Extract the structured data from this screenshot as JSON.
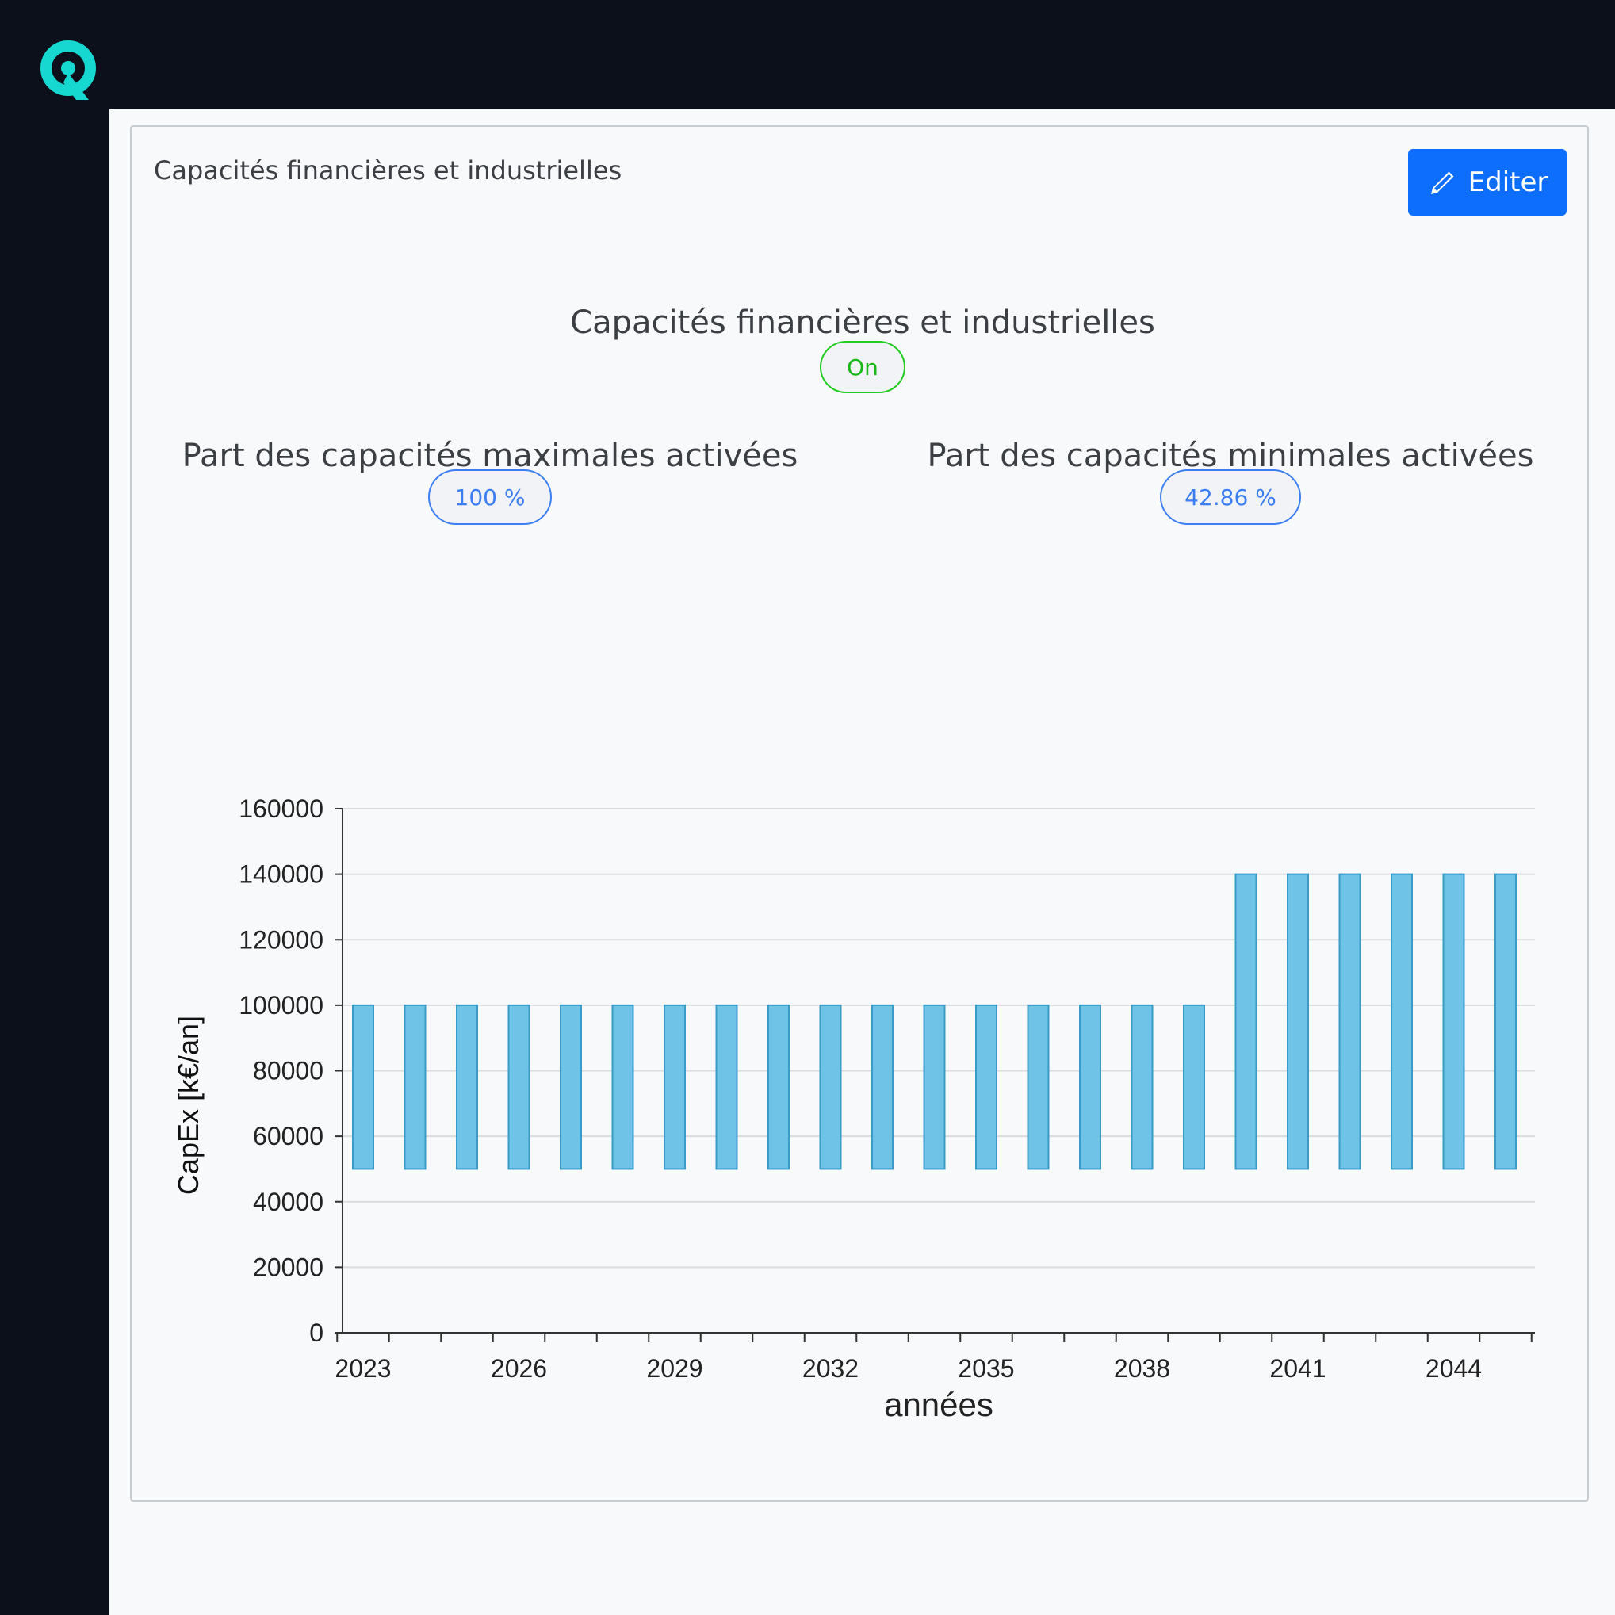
{
  "sidebar": {
    "logo_icon": "q-logo-icon"
  },
  "card": {
    "title": "Capacités financières et industrielles",
    "edit_label": "Editer",
    "edit_icon": "pencil-icon"
  },
  "settings": {
    "main_label": "Capacités financières et industrielles",
    "main_status": "On",
    "max_label": "Part des capacités maximales activées",
    "max_value": "100 %",
    "min_label": "Part des capacités minimales activées",
    "min_value": "42.86 %"
  },
  "colors": {
    "bar_fill": "#6ec3e6",
    "bar_stroke": "#3a9cc6",
    "primary": "#0d6efd",
    "on_green": "#22cc22",
    "logo": "#17d7d1"
  },
  "chart_data": {
    "type": "bar",
    "floating": true,
    "xlabel": "années",
    "ylabel": "CapEx [k€/an]",
    "ylim": [
      0,
      160000
    ],
    "yticks": [
      0,
      20000,
      40000,
      60000,
      80000,
      100000,
      120000,
      140000,
      160000
    ],
    "xtick_labels": [
      "2023",
      "2026",
      "2029",
      "2032",
      "2035",
      "2038",
      "2041",
      "2044"
    ],
    "grid": true,
    "categories": [
      "2023",
      "2024",
      "2025",
      "2026",
      "2027",
      "2028",
      "2029",
      "2030",
      "2031",
      "2032",
      "2033",
      "2034",
      "2035",
      "2036",
      "2037",
      "2038",
      "2039",
      "2040",
      "2041",
      "2042",
      "2043",
      "2044",
      "2045"
    ],
    "series": [
      {
        "low": [
          50000,
          50000,
          50000,
          50000,
          50000,
          50000,
          50000,
          50000,
          50000,
          50000,
          50000,
          50000,
          50000,
          50000,
          50000,
          50000,
          50000,
          50000,
          50000,
          50000,
          50000,
          50000,
          50000
        ],
        "high": [
          100000,
          100000,
          100000,
          100000,
          100000,
          100000,
          100000,
          100000,
          100000,
          100000,
          100000,
          100000,
          100000,
          100000,
          100000,
          100000,
          100000,
          140000,
          140000,
          140000,
          140000,
          140000,
          140000
        ]
      }
    ]
  }
}
